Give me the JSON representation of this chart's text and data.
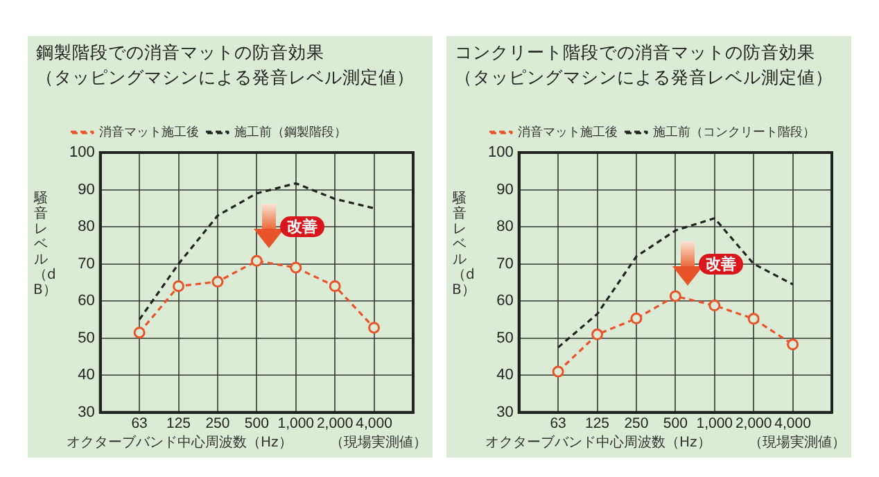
{
  "chart_data": [
    {
      "type": "line",
      "title": "鋼製階段での消音マットの防音効果",
      "subtitle": "（タッピングマシンによる発音レベル測定値）",
      "xlabel": "オクターブバンド中心周波数（Hz）",
      "ylabel": "騒音レベル（dB）",
      "categories": [
        "63",
        "125",
        "250",
        "500",
        "1,000",
        "2,000",
        "4,000"
      ],
      "series": [
        {
          "name": "消音マット施工後",
          "color": "#e8542a",
          "values": [
            51.5,
            64,
            65.2,
            70.8,
            69,
            64,
            52.8
          ],
          "marker": "circle",
          "line_style": "dashed"
        },
        {
          "name": "施工前（鋼製階段）",
          "color": "#222222",
          "values": [
            55,
            70,
            83,
            89,
            91.7,
            87.5,
            85
          ],
          "marker": "none",
          "line_style": "dashed"
        }
      ],
      "ylim": [
        30,
        100
      ],
      "yticks": [
        30,
        40,
        50,
        60,
        70,
        80,
        90,
        100
      ],
      "grid": true,
      "legend": "top",
      "annotations": [
        "改善",
        "（現場実測値）"
      ]
    },
    {
      "type": "line",
      "title": "コンクリート階段での消音マットの防音効果",
      "subtitle": "（タッピングマシンによる発音レベル測定値）",
      "xlabel": "オクターブバンド中心周波数（Hz）",
      "ylabel": "騒音レベル（dB）",
      "categories": [
        "63",
        "125",
        "250",
        "500",
        "1,000",
        "2,000",
        "4,000"
      ],
      "series": [
        {
          "name": "消音マット施工後",
          "color": "#e8542a",
          "values": [
            41,
            51,
            55.3,
            61.3,
            58.8,
            55.2,
            48.3
          ],
          "marker": "circle",
          "line_style": "dashed"
        },
        {
          "name": "施工前（コンクリート階段）",
          "color": "#222222",
          "values": [
            47.5,
            56.5,
            72,
            79,
            82.3,
            70,
            64.5
          ],
          "marker": "none",
          "line_style": "dashed"
        }
      ],
      "ylim": [
        30,
        100
      ],
      "yticks": [
        30,
        40,
        50,
        60,
        70,
        80,
        90,
        100
      ],
      "grid": true,
      "legend": "top",
      "annotations": [
        "改善",
        "（現場実測値）"
      ]
    }
  ]
}
